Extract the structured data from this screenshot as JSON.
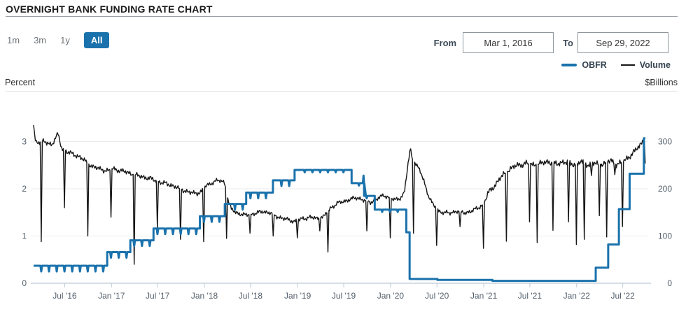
{
  "header": {
    "title": "OVERNIGHT BANK FUNDING RATE CHART"
  },
  "controls": {
    "ranges": [
      {
        "label": "1m",
        "selected": false
      },
      {
        "label": "3m",
        "selected": false
      },
      {
        "label": "1y",
        "selected": false
      },
      {
        "label": "All",
        "selected": true
      }
    ],
    "from_label": "From",
    "from_value": "Mar 1, 2016",
    "to_label": "To",
    "to_value": "Sep 29, 2022"
  },
  "chart_data": {
    "type": "line",
    "x_range": {
      "from": "Mar 1, 2016",
      "to": "Sep 29, 2022"
    },
    "y_left": {
      "label": "Percent",
      "ticks": [
        0,
        1,
        2,
        3
      ]
    },
    "y_right": {
      "label": "$Billions",
      "ticks": [
        0,
        100,
        200,
        300
      ]
    },
    "x_ticks": [
      {
        "label": "Jul '16",
        "f": 0.0508
      },
      {
        "label": "Jan '17",
        "f": 0.1273
      },
      {
        "label": "Jul '17",
        "f": 0.2027
      },
      {
        "label": "Jan '18",
        "f": 0.2792
      },
      {
        "label": "Jul '18",
        "f": 0.3546
      },
      {
        "label": "Jan '19",
        "f": 0.4315
      },
      {
        "label": "Jul '19",
        "f": 0.5069
      },
      {
        "label": "Jan '20",
        "f": 0.5834
      },
      {
        "label": "Jul '20",
        "f": 0.6592
      },
      {
        "label": "Jan '21",
        "f": 0.7358
      },
      {
        "label": "Jul '21",
        "f": 0.8111
      },
      {
        "label": "Jan '22",
        "f": 0.8876
      },
      {
        "label": "Jul '22",
        "f": 0.963
      }
    ],
    "series": [
      {
        "name": "Volume",
        "axis": "right",
        "color": "#161616",
        "noise_amp": 6,
        "base": [
          [
            0.0,
            335
          ],
          [
            0.002,
            308
          ],
          [
            0.004,
            300
          ],
          [
            0.011,
            299
          ],
          [
            0.016,
            300
          ],
          [
            0.03,
            294
          ],
          [
            0.04,
            316
          ],
          [
            0.046,
            286
          ],
          [
            0.055,
            278
          ],
          [
            0.075,
            268
          ],
          [
            0.085,
            258
          ],
          [
            0.095,
            248
          ],
          [
            0.11,
            241
          ],
          [
            0.124,
            238
          ],
          [
            0.128,
            243
          ],
          [
            0.15,
            236
          ],
          [
            0.162,
            231
          ],
          [
            0.17,
            228
          ],
          [
            0.19,
            222
          ],
          [
            0.207,
            214
          ],
          [
            0.225,
            208
          ],
          [
            0.238,
            201
          ],
          [
            0.247,
            196
          ],
          [
            0.262,
            190
          ],
          [
            0.273,
            193
          ],
          [
            0.282,
            206
          ],
          [
            0.292,
            213
          ],
          [
            0.3,
            218
          ],
          [
            0.312,
            214
          ],
          [
            0.318,
            175
          ],
          [
            0.323,
            158
          ],
          [
            0.33,
            150
          ],
          [
            0.347,
            144
          ],
          [
            0.362,
            148
          ],
          [
            0.375,
            152
          ],
          [
            0.387,
            149
          ],
          [
            0.398,
            141
          ],
          [
            0.414,
            135
          ],
          [
            0.426,
            131
          ],
          [
            0.438,
            136
          ],
          [
            0.452,
            140
          ],
          [
            0.463,
            137
          ],
          [
            0.475,
            142
          ],
          [
            0.486,
            160
          ],
          [
            0.497,
            170
          ],
          [
            0.507,
            173
          ],
          [
            0.517,
            178
          ],
          [
            0.53,
            181
          ],
          [
            0.54,
            176
          ],
          [
            0.551,
            171
          ],
          [
            0.562,
            179
          ],
          [
            0.572,
            186
          ],
          [
            0.581,
            182
          ],
          [
            0.59,
            176
          ],
          [
            0.6,
            181
          ],
          [
            0.606,
            192
          ],
          [
            0.612,
            252
          ],
          [
            0.616,
            286
          ],
          [
            0.619,
            263
          ],
          [
            0.624,
            254
          ],
          [
            0.631,
            240
          ],
          [
            0.638,
            216
          ],
          [
            0.645,
            187
          ],
          [
            0.653,
            166
          ],
          [
            0.663,
            152
          ],
          [
            0.68,
            148
          ],
          [
            0.691,
            153
          ],
          [
            0.705,
            149
          ],
          [
            0.716,
            153
          ],
          [
            0.726,
            159
          ],
          [
            0.736,
            168
          ],
          [
            0.743,
            191
          ],
          [
            0.753,
            206
          ],
          [
            0.763,
            223
          ],
          [
            0.771,
            233
          ],
          [
            0.777,
            240
          ],
          [
            0.785,
            247
          ],
          [
            0.795,
            251
          ],
          [
            0.805,
            254
          ],
          [
            0.816,
            251
          ],
          [
            0.828,
            253
          ],
          [
            0.84,
            258
          ],
          [
            0.847,
            255
          ],
          [
            0.856,
            252
          ],
          [
            0.866,
            258
          ],
          [
            0.873,
            255
          ],
          [
            0.881,
            252
          ],
          [
            0.886,
            251
          ],
          [
            0.894,
            258
          ],
          [
            0.901,
            252
          ],
          [
            0.908,
            251
          ],
          [
            0.916,
            255
          ],
          [
            0.922,
            251
          ],
          [
            0.93,
            253
          ],
          [
            0.937,
            257
          ],
          [
            0.944,
            259
          ],
          [
            0.951,
            252
          ],
          [
            0.958,
            254
          ],
          [
            0.966,
            259
          ],
          [
            0.972,
            267
          ],
          [
            0.979,
            275
          ],
          [
            0.985,
            283
          ],
          [
            0.991,
            292
          ],
          [
            0.995,
            299
          ],
          [
            0.998,
            307
          ],
          [
            0.9995,
            298
          ],
          [
            1.0,
            196
          ]
        ],
        "dips": [
          [
            0.0125,
            88
          ],
          [
            0.0504,
            160
          ],
          [
            0.0886,
            100
          ],
          [
            0.1265,
            140
          ],
          [
            0.1644,
            40
          ],
          [
            0.2023,
            115
          ],
          [
            0.2401,
            93
          ],
          [
            0.278,
            88
          ],
          [
            0.3154,
            95
          ],
          [
            0.3537,
            106
          ],
          [
            0.3916,
            100
          ],
          [
            0.4311,
            96
          ],
          [
            0.4678,
            111
          ],
          [
            0.4811,
            66
          ],
          [
            0.5447,
            111
          ],
          [
            0.583,
            96
          ],
          [
            0.6209,
            106
          ],
          [
            0.6588,
            80
          ],
          [
            0.697,
            120
          ],
          [
            0.7353,
            74
          ],
          [
            0.7728,
            89
          ],
          [
            0.8106,
            130
          ],
          [
            0.8231,
            86
          ],
          [
            0.8489,
            112
          ],
          [
            0.8743,
            130
          ],
          [
            0.8872,
            82
          ],
          [
            0.9001,
            93
          ],
          [
            0.9118,
            228
          ],
          [
            0.9247,
            143
          ],
          [
            0.9367,
            98
          ],
          [
            0.95,
            230
          ],
          [
            0.9625,
            120
          ]
        ]
      },
      {
        "name": "OBFR",
        "axis": "left",
        "color": "#1a72ac",
        "steps": [
          [
            0.0,
            0.37
          ],
          [
            0.1203,
            0.66
          ],
          [
            0.1581,
            0.91
          ],
          [
            0.196,
            1.16
          ],
          [
            0.2718,
            1.42
          ],
          [
            0.3125,
            1.68
          ],
          [
            0.3475,
            1.92
          ],
          [
            0.3912,
            2.18
          ],
          [
            0.4266,
            2.4
          ],
          [
            0.5198,
            2.12
          ],
          [
            0.5402,
            1.85
          ],
          [
            0.5576,
            1.56
          ],
          [
            0.6092,
            1.08
          ],
          [
            0.6146,
            0.09
          ],
          [
            0.66,
            0.07
          ],
          [
            0.75,
            0.05
          ],
          [
            0.9188,
            0.33
          ],
          [
            0.9392,
            0.82
          ],
          [
            0.9567,
            1.57
          ],
          [
            0.9742,
            2.32
          ],
          [
            0.9975,
            3.07
          ]
        ],
        "monthend_dips": {
          "f0": 0.01249,
          "df": 0.012665,
          "count": 47,
          "depth": 0.12,
          "depth_shallow": 0.05,
          "shallow_after_f": 0.4266,
          "none_after_f": 0.6092
        },
        "spikes": [
          [
            0.5393,
            2.28
          ]
        ]
      }
    ]
  }
}
